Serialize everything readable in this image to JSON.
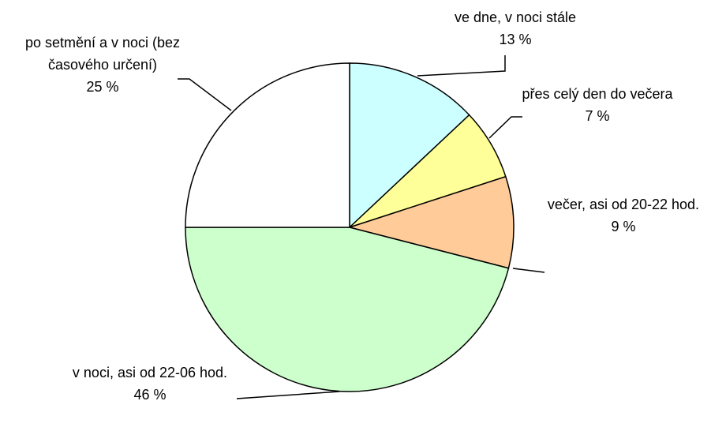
{
  "chart_data": {
    "type": "pie",
    "categories": [
      "ve dne, v noci stále",
      "přes celý den do večera",
      "večer, asi od 20-22 hod.",
      "v noci, asi od 22-06 hod.",
      "po setmění a v noci (bez časového určení)"
    ],
    "values": [
      13,
      7,
      9,
      46,
      25
    ],
    "value_labels": [
      "13 %",
      "7 %",
      "9 %",
      "46 %",
      "25 %"
    ],
    "colors": [
      "#ccffff",
      "#ffff99",
      "#ffcc99",
      "#ccffcc",
      "#ffffff"
    ]
  }
}
